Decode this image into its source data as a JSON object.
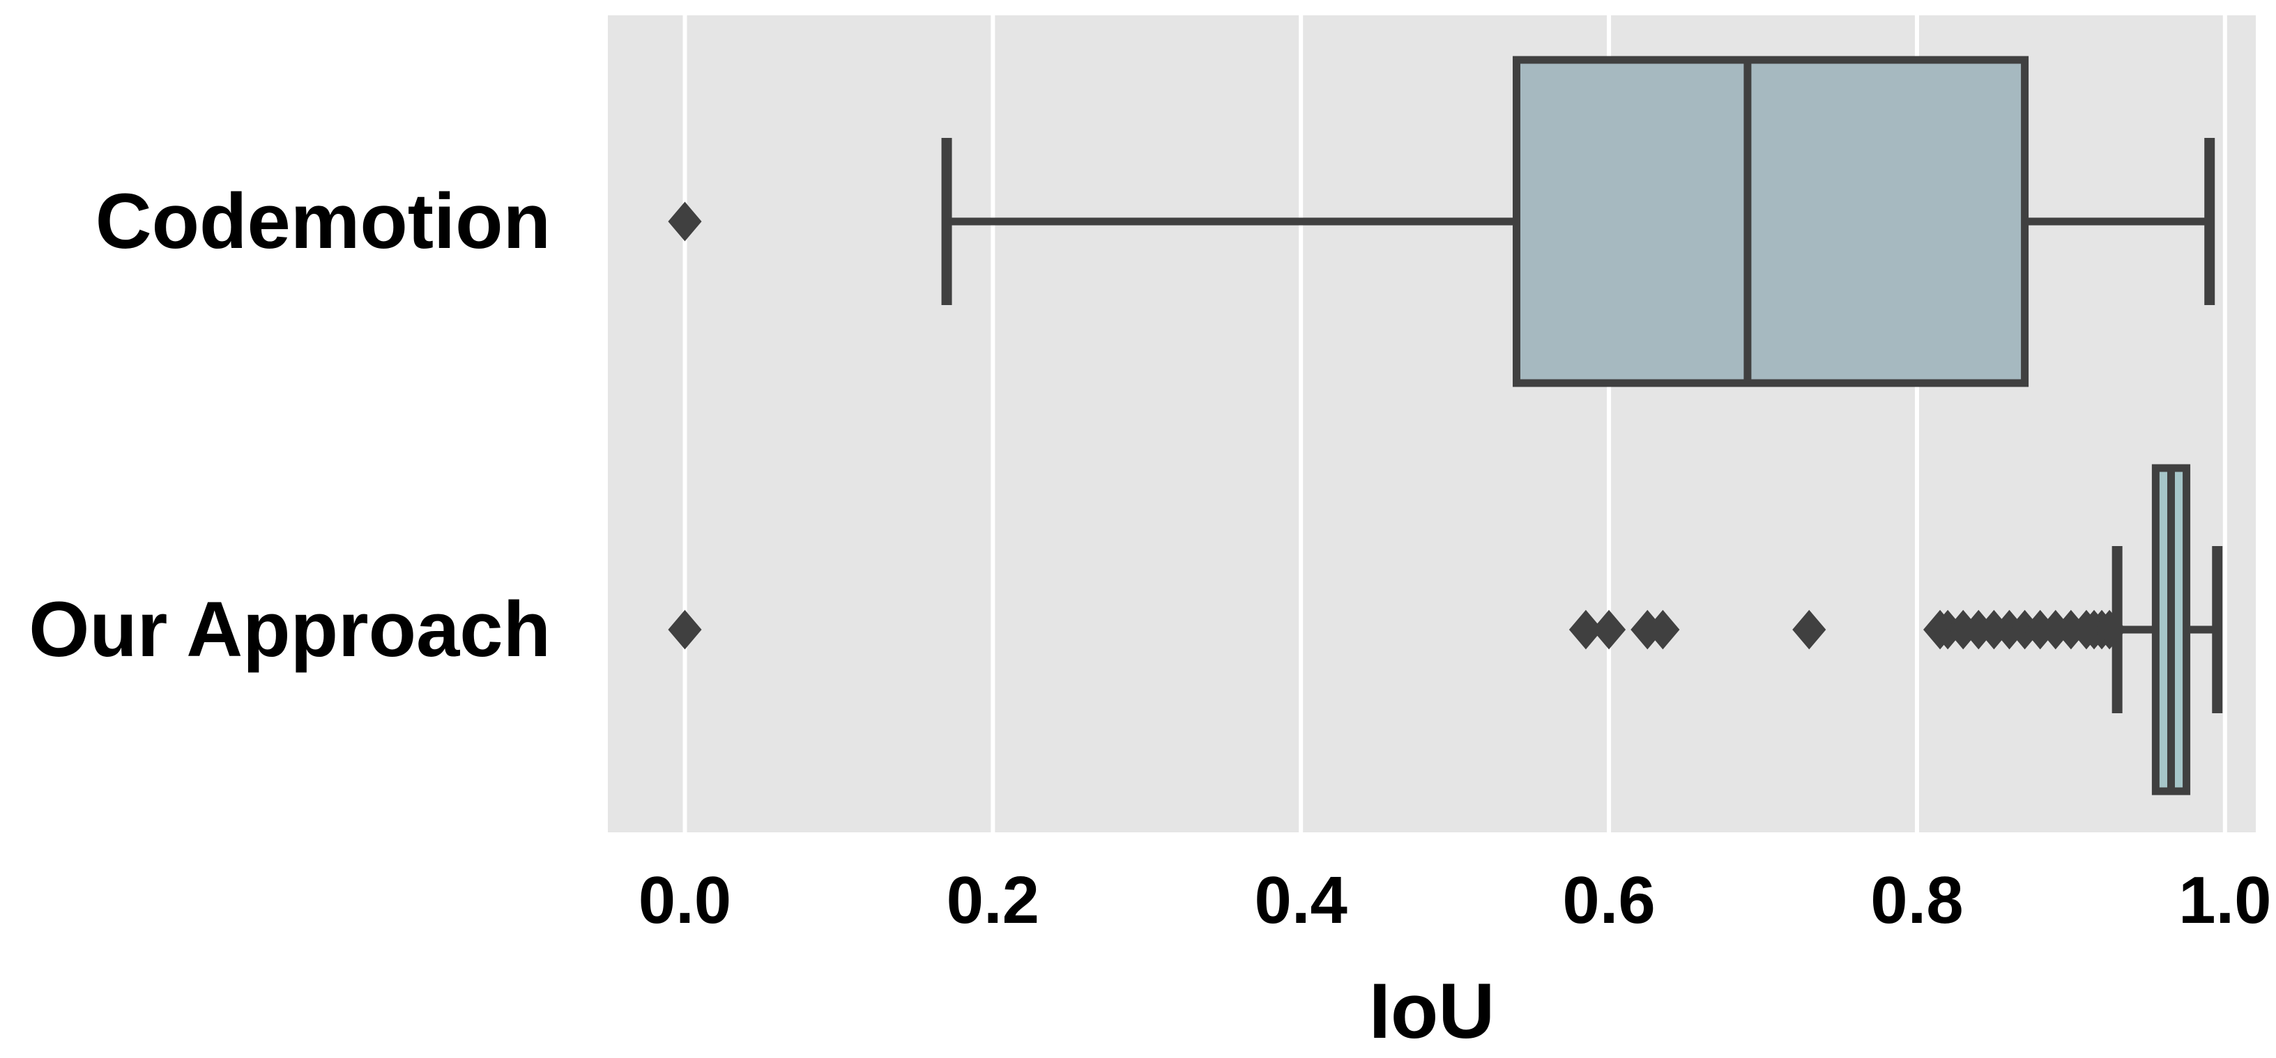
{
  "chart_data": {
    "type": "boxplot",
    "orientation": "horizontal",
    "xlabel": "IoU",
    "ylabel": "",
    "xlim": [
      -0.05,
      1.02
    ],
    "xticks": [
      0.0,
      0.2,
      0.4,
      0.6,
      0.8,
      1.0
    ],
    "xtick_labels": [
      "0.0",
      "0.2",
      "0.4",
      "0.6",
      "0.8",
      "1.0"
    ],
    "grid": true,
    "background": "#e5e5e5",
    "gridline_color": "#ffffff",
    "box_edge_color": "#404040",
    "categories": [
      "Codemotion",
      "Our Approach"
    ],
    "boxes": [
      {
        "category": "Codemotion",
        "whisker_low": 0.17,
        "q1": 0.54,
        "median": 0.69,
        "q3": 0.87,
        "whisker_high": 0.99,
        "outliers": [
          0.0
        ],
        "fill": "#a6b9c0"
      },
      {
        "category": "Our Approach",
        "whisker_low": 0.93,
        "q1": 0.955,
        "median": 0.965,
        "q3": 0.975,
        "whisker_high": 0.995,
        "outliers": [
          0.0,
          0.585,
          0.6,
          0.625,
          0.635,
          0.73,
          0.815,
          0.82,
          0.83,
          0.84,
          0.85,
          0.86,
          0.87,
          0.88,
          0.89,
          0.9,
          0.91,
          0.915,
          0.92,
          0.925
        ],
        "fill": "#a6c6c9"
      }
    ]
  }
}
